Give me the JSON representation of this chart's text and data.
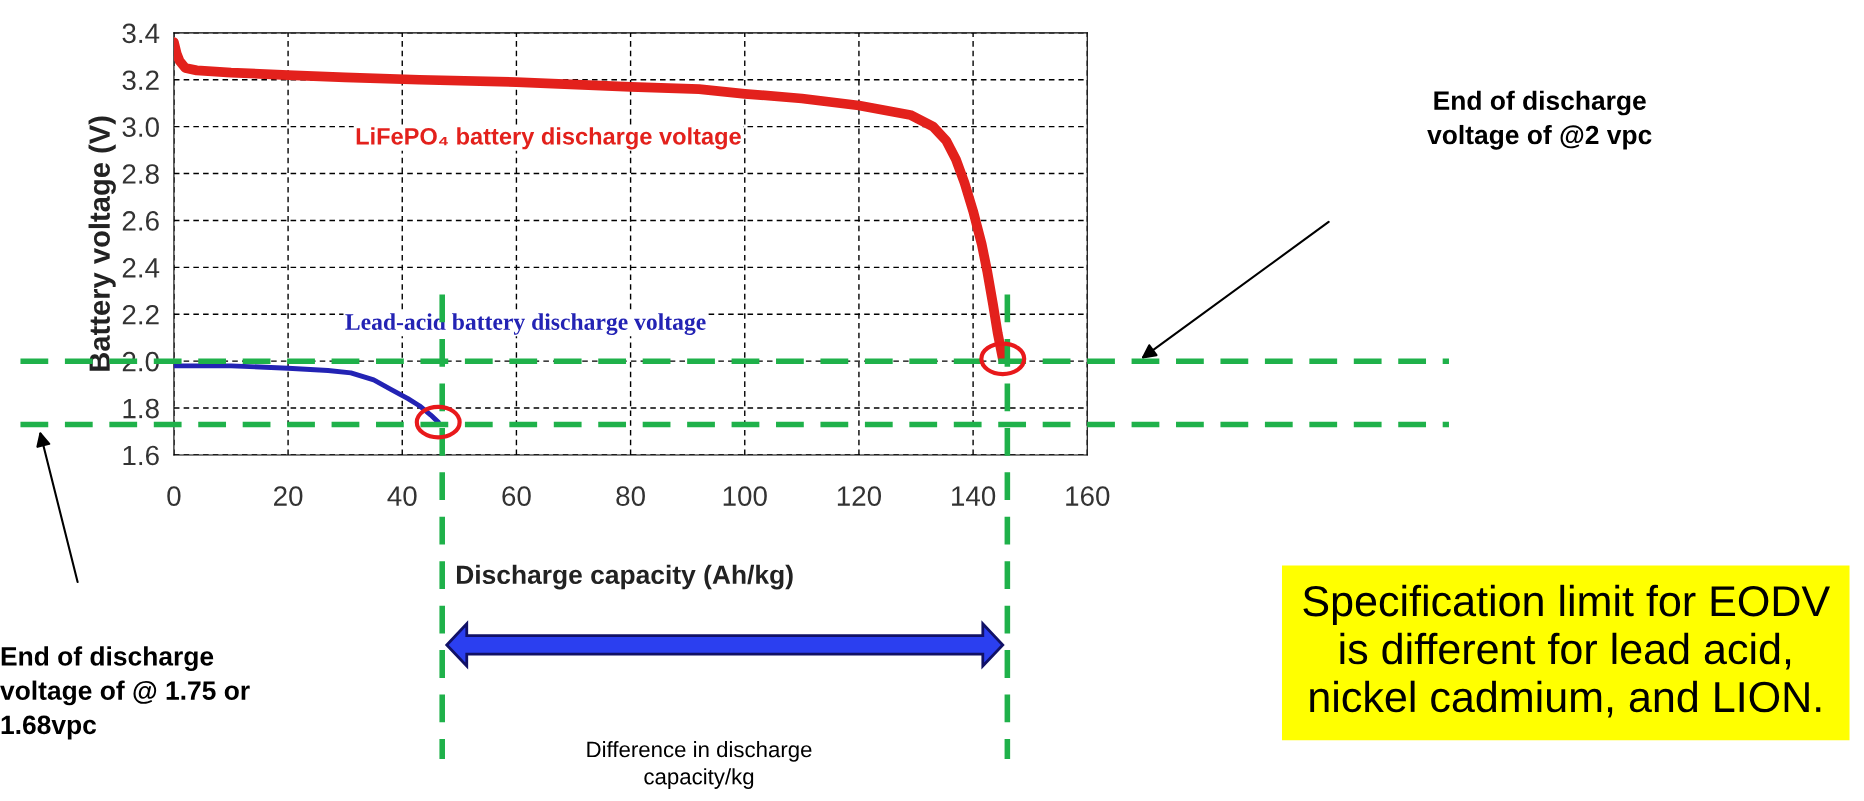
{
  "chart_data": {
    "type": "line",
    "xlabel": "Discharge capacity (Ah/kg)",
    "ylabel": "Battery voltage (V)",
    "xlim": [
      0,
      160
    ],
    "ylim": [
      1.6,
      3.4
    ],
    "xticks": [
      0,
      20,
      40,
      60,
      80,
      100,
      120,
      140,
      160
    ],
    "yticks": [
      {
        "value": 1.6,
        "label": "1.6"
      },
      {
        "value": 1.8,
        "label": "1.8"
      },
      {
        "value": 2.0,
        "label": "2.0"
      },
      {
        "value": 2.2,
        "label": "2.2"
      },
      {
        "value": 2.4,
        "label": "2.4"
      },
      {
        "value": 2.6,
        "label": "2.6"
      },
      {
        "value": 2.8,
        "label": "2.8"
      },
      {
        "value": 3.0,
        "label": "3.0"
      },
      {
        "value": 3.2,
        "label": "3.2"
      },
      {
        "value": 3.4,
        "label": "3.4"
      }
    ],
    "grid": true,
    "legend": false,
    "marker": "none",
    "line_style": "solid",
    "series": [
      {
        "name": "LiFePO₄ battery discharge voltage",
        "color": "#e3211c",
        "x": [
          0,
          0.5,
          1,
          2,
          4,
          10,
          20,
          30,
          43,
          60,
          80,
          92,
          100,
          110,
          120,
          129,
          133,
          135.3,
          137,
          138.5,
          140,
          141.5,
          142.5,
          143.5,
          144.3,
          145.2
        ],
        "values": [
          3.36,
          3.31,
          3.28,
          3.25,
          3.24,
          3.23,
          3.22,
          3.21,
          3.2,
          3.19,
          3.17,
          3.16,
          3.14,
          3.12,
          3.09,
          3.05,
          3.0,
          2.94,
          2.86,
          2.76,
          2.64,
          2.5,
          2.38,
          2.24,
          2.12,
          2.01
        ]
      },
      {
        "name": "Lead-acid battery discharge voltage",
        "color": "#2323b4",
        "x": [
          0,
          10,
          20,
          27,
          31,
          35,
          38,
          41,
          43,
          45,
          46.3
        ],
        "values": [
          1.98,
          1.98,
          1.97,
          1.96,
          1.95,
          1.92,
          1.88,
          1.84,
          1.81,
          1.77,
          1.74
        ]
      }
    ],
    "ref_lines": [
      {
        "axis": "y",
        "value": 2.0,
        "color": "#1fb14a",
        "line_style": "dashed"
      },
      {
        "axis": "y",
        "value": 1.73,
        "color": "#1fb14a",
        "line_style": "dashed"
      },
      {
        "axis": "x",
        "value": 47,
        "color": "#1fb14a",
        "line_style": "dashed"
      },
      {
        "axis": "x",
        "value": 146,
        "color": "#1fb14a",
        "line_style": "dashed"
      }
    ],
    "annotations": [
      "End of discharge\nvoltage of @2 vpc",
      "End of discharge\nvoltage of @ 1.75 or\n1.68vpc",
      "Difference in discharge\ncapacity/kg",
      "Specification limit for EODV\nis different for lead acid,\nnickel cadmium, and LION."
    ]
  }
}
